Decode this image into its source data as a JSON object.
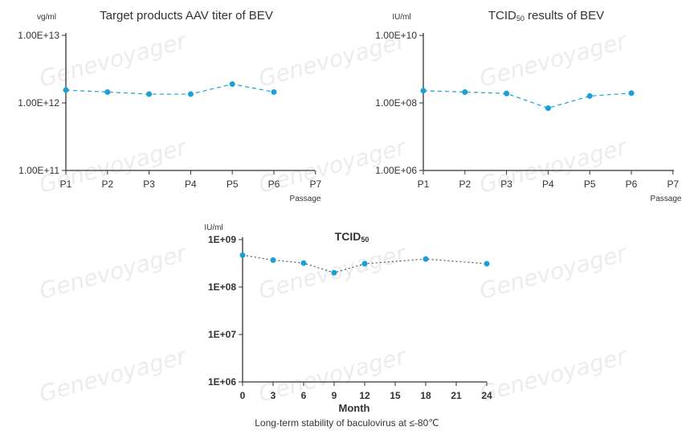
{
  "watermark": "Genevoyager",
  "caption": "Long-term stability of baculovirus at ≤-80℃",
  "colors": {
    "series": "#1a9fd6",
    "axis": "#333333",
    "text": "#333333",
    "watermark": "#ececec"
  },
  "chart_data": [
    {
      "type": "line",
      "title": "Target products AAV titer of BEV",
      "ylabel": "vg/ml",
      "xlabel": "Passage",
      "yscale": "log",
      "ylim": [
        100000000000.0,
        10000000000000.0
      ],
      "yticks": [
        100000000000.0,
        1000000000000.0,
        10000000000000.0
      ],
      "ytick_labels": [
        "1.00E+11",
        "1.00E+12",
        "1.00E+13"
      ],
      "categories": [
        "P1",
        "P2",
        "P3",
        "P4",
        "P5",
        "P6",
        "P7"
      ],
      "values": [
        1550000000000.0,
        1450000000000.0,
        1350000000000.0,
        1350000000000.0,
        1900000000000.0,
        1450000000000.0,
        null
      ],
      "line_style": "dashed",
      "grid": false
    },
    {
      "type": "line",
      "title": "TCID",
      "title_sub": "50",
      "title_rest": " results of BEV",
      "ylabel": "IU/ml",
      "xlabel": "Passage",
      "yscale": "log",
      "ylim": [
        1000000.0,
        10000000000.0
      ],
      "yticks": [
        1000000.0,
        100000000.0,
        10000000000.0
      ],
      "ytick_labels": [
        "1.00E+06",
        "1.00E+08",
        "1.00E+10"
      ],
      "categories": [
        "P1",
        "P2",
        "P3",
        "P4",
        "P5",
        "P6",
        "P7"
      ],
      "values": [
        230000000.0,
        210000000.0,
        190000000.0,
        70000000.0,
        160000000.0,
        195000000.0,
        null
      ],
      "line_style": "dashed",
      "grid": false
    },
    {
      "type": "line",
      "title": "TCID",
      "title_sub": "50",
      "ylabel": "IU/ml",
      "xlabel": "Month",
      "yscale": "log",
      "ylim": [
        1000000.0,
        1000000000.0
      ],
      "yticks": [
        1000000.0,
        10000000.0,
        100000000.0,
        1000000000.0
      ],
      "ytick_labels": [
        "1E+06",
        "1E+07",
        "1E+08",
        "1E+09"
      ],
      "x": [
        0,
        3,
        6,
        9,
        12,
        18,
        24
      ],
      "xticks": [
        0,
        3,
        6,
        9,
        12,
        15,
        18,
        21,
        24
      ],
      "xlim": [
        0,
        24
      ],
      "values": [
        470000000.0,
        370000000.0,
        320000000.0,
        200000000.0,
        310000000.0,
        390000000.0,
        310000000.0
      ],
      "line_style": "dotted",
      "grid": false
    }
  ]
}
